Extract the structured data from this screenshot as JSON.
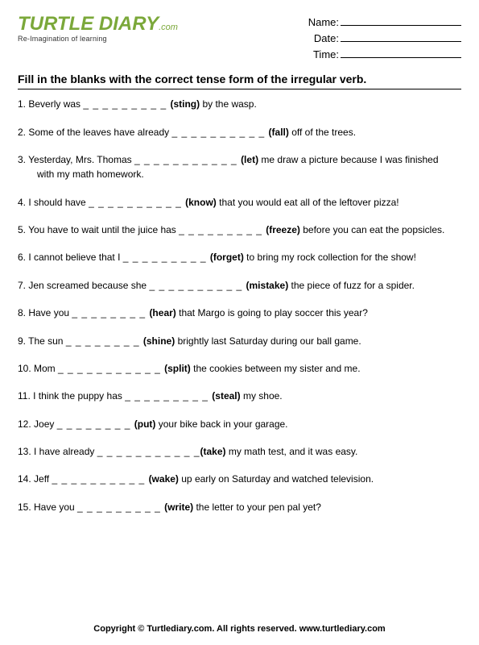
{
  "logo": {
    "main": "TURTLE DIARY",
    "suffix": ".com",
    "tagline": "Re-Imagination of learning"
  },
  "meta": {
    "name_label": "Name:",
    "date_label": "Date:",
    "time_label": "Time:"
  },
  "instructions": "Fill in the blanks with the correct tense form of the irregular verb.",
  "questions": [
    {
      "n": "1.",
      "pre": "Beverly was  ",
      "blank": "_ _ _ _ _ _ _ _ _ ",
      "verb": "(sting)",
      "post": " by the wasp."
    },
    {
      "n": "2.",
      "pre": "Some of the leaves have already  ",
      "blank": "_ _ _ _ _ _ _ _ _ _  ",
      "verb": "(fall)",
      "post": " off of the trees."
    },
    {
      "n": "3.",
      "pre": "Yesterday, Mrs. Thomas ",
      "blank": "_ _ _ _ _ _ _ _ _  _ _ ",
      "verb": "(let)",
      "post": " me draw a picture because I was finished",
      "cont": "with my math homework."
    },
    {
      "n": "4.",
      "pre": "I should have ",
      "blank": "_ _ _ _ _ _ _ _ _ _ ",
      "verb": "(know)",
      "post": " that you would eat all of the leftover pizza!"
    },
    {
      "n": "5.",
      "pre": "You have to wait until the juice has ",
      "blank": "_ _ _ _ _ _ _ _ _ ",
      "verb": "(freeze)",
      "post": " before you can eat the popsicles."
    },
    {
      "n": "6.",
      "pre": "I cannot believe that I ",
      "blank": "_ _ _ _ _ _ _ _ _ ",
      "verb": "(forget)",
      "post": " to bring my rock collection for the show!"
    },
    {
      "n": "7.",
      "pre": "Jen screamed because she ",
      "blank": "_ _ _ _ _ _ _ _ _ _ ",
      "verb": "(mistake)",
      "post": " the piece of fuzz for a spider."
    },
    {
      "n": "8.",
      "pre": "Have you ",
      "blank": "_ _ _ _ _ _ _ _ ",
      "verb": "(hear)",
      "post": " that Margo is going to play soccer this year?"
    },
    {
      "n": "9.",
      "pre": "The sun ",
      "blank": "_ _ _ _ _ _ _ _ ",
      "verb": "(shine)",
      "post": " brightly last Saturday during our ball game."
    },
    {
      "n": "10.",
      "pre": "Mom ",
      "blank": "_ _ _ _ _ _ _ _ _ _ _ ",
      "verb": "(split)",
      "post": " the cookies between my sister and me."
    },
    {
      "n": "11.",
      "pre": "I think the puppy has ",
      "blank": "_ _ _ _ _ _ _ _ _ ",
      "verb": "(steal)",
      "post": " my shoe."
    },
    {
      "n": "12.",
      "pre": "Joey ",
      "blank": "_ _ _ _ _ _ _ _  ",
      "verb": "(put)",
      "post": " your bike back in your garage."
    },
    {
      "n": "13.",
      "pre": "I have already ",
      "blank": "_ _ _ _ _ _ _ _ _ _ _",
      "verb": "(take)",
      "post": " my math test, and it was easy."
    },
    {
      "n": "14.",
      "pre": "Jeff  ",
      "blank": "_ _ _ _ _ _ _ _ _ _ ",
      "verb": "(wake)",
      "post": " up early on Saturday and watched television."
    },
    {
      "n": "15.",
      "pre": "Have you ",
      "blank": "_ _ _ _ _ _ _ _ _ ",
      "verb": "(write)",
      "post": " the letter to your pen pal yet?"
    }
  ],
  "footer": "Copyright © Turtlediary.com. All rights reserved.   www.turtlediary.com"
}
